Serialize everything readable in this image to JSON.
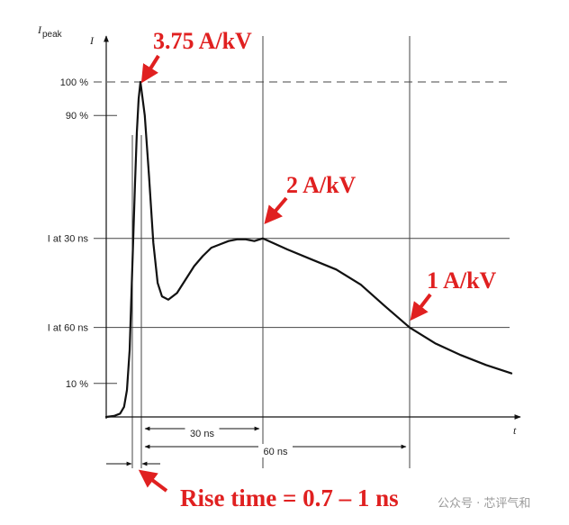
{
  "chart_data": {
    "type": "line",
    "y_axis_title": "I",
    "y_axis_subtitle": "peak",
    "y_axis_unit_symbol": "I",
    "x_axis_title": "t",
    "y_ticks": [
      {
        "label": "100 %",
        "value": 1.0
      },
      {
        "label": "90 %",
        "value": 0.9
      },
      {
        "label": "I at 30 ns",
        "value": 0.533
      },
      {
        "label": "I at 60 ns",
        "value": 0.267
      },
      {
        "label": "10 %",
        "value": 0.1
      }
    ],
    "x_markers": [
      {
        "label": "30 ns",
        "value": 30
      },
      {
        "label": "60 ns",
        "value": 60
      }
    ],
    "series": [
      {
        "points": [
          [
            -6,
            0
          ],
          [
            -4,
            0.003
          ],
          [
            -2.5,
            0.01
          ],
          [
            -1.5,
            0.03
          ],
          [
            -0.9,
            0.08
          ],
          [
            -0.6,
            0.2
          ],
          [
            -0.3,
            0.45
          ],
          [
            0,
            0.7
          ],
          [
            0.5,
            0.85
          ],
          [
            1,
            0.95
          ],
          [
            1.5,
            1.0
          ],
          [
            2.5,
            0.9
          ],
          [
            3.5,
            0.72
          ],
          [
            4.5,
            0.52
          ],
          [
            5.5,
            0.4
          ],
          [
            6.5,
            0.36
          ],
          [
            8,
            0.35
          ],
          [
            10,
            0.37
          ],
          [
            12,
            0.41
          ],
          [
            14,
            0.45
          ],
          [
            16,
            0.48
          ],
          [
            18,
            0.505
          ],
          [
            20,
            0.515
          ],
          [
            22,
            0.525
          ],
          [
            24,
            0.53
          ],
          [
            26,
            0.53
          ],
          [
            28,
            0.525
          ],
          [
            30,
            0.533
          ],
          [
            35,
            0.5
          ],
          [
            40,
            0.47
          ],
          [
            45,
            0.44
          ],
          [
            50,
            0.395
          ],
          [
            55,
            0.33
          ],
          [
            60,
            0.267
          ],
          [
            65,
            0.22
          ],
          [
            70,
            0.185
          ],
          [
            75,
            0.155
          ],
          [
            80,
            0.13
          ]
        ]
      }
    ],
    "annotations": [
      {
        "text": "3.75 A/kV",
        "x": 1.5,
        "y": 1.0
      },
      {
        "text": "2 A/kV",
        "x": 30,
        "y": 0.533
      },
      {
        "text": "1 A/kV",
        "x": 60,
        "y": 0.267
      }
    ],
    "rise_time_label": "Rise time = 0.7 – 1 ns",
    "xlim": [
      -6,
      82
    ],
    "ylim": [
      0,
      1.1
    ],
    "grid": true
  },
  "watermark": "公众号 · 芯评气和",
  "colors": {
    "annotation": "#e02020",
    "line": "#111111",
    "grid": "#555555"
  }
}
